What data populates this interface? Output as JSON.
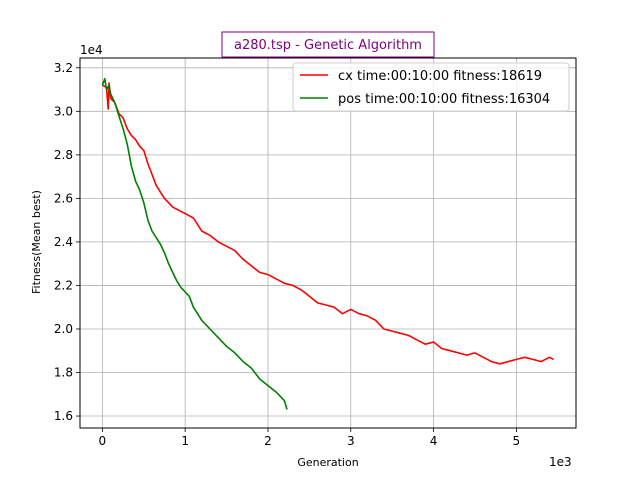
{
  "chart_data": {
    "type": "line",
    "title": "a280.tsp - Genetic Algorithm",
    "title_color": "#800080",
    "xlabel": "Generation",
    "ylabel": "Fitness(Mean best)",
    "x_multiplier_label": "1e3",
    "y_multiplier_label": "1e4",
    "xlim": [
      -270,
      5720
    ],
    "ylim": [
      15450,
      32450
    ],
    "x_ticks": [
      0,
      1000,
      2000,
      3000,
      4000,
      5000
    ],
    "x_tick_labels": [
      "0",
      "1",
      "2",
      "3",
      "4",
      "5"
    ],
    "y_ticks": [
      16000,
      18000,
      20000,
      22000,
      24000,
      26000,
      28000,
      30000,
      32000
    ],
    "y_tick_labels": [
      "1.6",
      "1.8",
      "2.0",
      "2.2",
      "2.4",
      "2.6",
      "2.8",
      "3.0",
      "3.2"
    ],
    "grid": true,
    "legend_position": "top-right",
    "series": [
      {
        "name": "cx time:00:10:00 fitness:18619",
        "color": "#ff0000",
        "x": [
          0,
          50,
          70,
          80,
          100,
          150,
          200,
          250,
          300,
          350,
          400,
          450,
          500,
          550,
          600,
          650,
          700,
          750,
          800,
          850,
          900,
          950,
          1000,
          1050,
          1100,
          1150,
          1200,
          1300,
          1400,
          1500,
          1600,
          1650,
          1700,
          1800,
          1900,
          2000,
          2100,
          2200,
          2300,
          2400,
          2500,
          2600,
          2700,
          2800,
          2900,
          3000,
          3100,
          3200,
          3300,
          3400,
          3500,
          3600,
          3700,
          3800,
          3900,
          4000,
          4100,
          4200,
          4300,
          4400,
          4500,
          4600,
          4700,
          4800,
          4900,
          5000,
          5100,
          5200,
          5300,
          5400,
          5450
        ],
        "y": [
          31200,
          31100,
          30100,
          31300,
          30600,
          30400,
          29900,
          29700,
          29200,
          28900,
          28700,
          28400,
          28200,
          27600,
          27100,
          26600,
          26300,
          26000,
          25800,
          25600,
          25500,
          25400,
          25300,
          25200,
          25100,
          24800,
          24500,
          24300,
          24000,
          23800,
          23600,
          23400,
          23200,
          22900,
          22600,
          22500,
          22300,
          22100,
          22000,
          21800,
          21500,
          21200,
          21100,
          21000,
          20700,
          20900,
          20700,
          20600,
          20400,
          20000,
          19900,
          19800,
          19700,
          19500,
          19300,
          19400,
          19100,
          19000,
          18900,
          18800,
          18900,
          18700,
          18500,
          18400,
          18500,
          18600,
          18700,
          18600,
          18500,
          18700,
          18600
        ]
      },
      {
        "name": "pos time:00:10:00 fitness:16304",
        "color": "#008000",
        "x": [
          0,
          30,
          50,
          80,
          100,
          150,
          200,
          250,
          300,
          350,
          400,
          450,
          500,
          550,
          600,
          650,
          700,
          750,
          800,
          850,
          900,
          950,
          1000,
          1050,
          1100,
          1150,
          1200,
          1300,
          1400,
          1500,
          1600,
          1700,
          1800,
          1900,
          2000,
          2100,
          2150,
          2200,
          2230
        ],
        "y": [
          31200,
          31500,
          31000,
          31200,
          30800,
          30400,
          29800,
          29200,
          28500,
          27500,
          26800,
          26400,
          25800,
          25000,
          24500,
          24200,
          23900,
          23500,
          23000,
          22600,
          22200,
          21900,
          21700,
          21500,
          21000,
          20700,
          20400,
          20000,
          19600,
          19200,
          18900,
          18500,
          18200,
          17700,
          17400,
          17100,
          16900,
          16700,
          16300
        ]
      }
    ]
  }
}
